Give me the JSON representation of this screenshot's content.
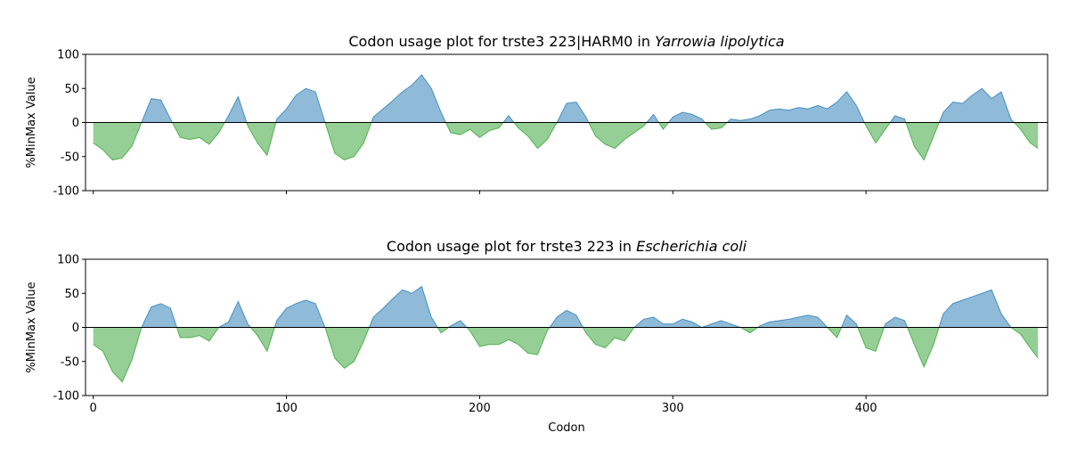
{
  "chart_data": [
    {
      "type": "area",
      "title": "Codon usage plot for trste3 223|HARM0 in",
      "title_italic": "Yarrowia lipolytica",
      "ylabel": "%MinMax Value",
      "x": [
        0,
        5,
        10,
        15,
        20,
        25,
        30,
        35,
        40,
        45,
        50,
        55,
        60,
        65,
        70,
        75,
        80,
        85,
        90,
        95,
        100,
        105,
        110,
        115,
        120,
        125,
        130,
        135,
        140,
        145,
        150,
        155,
        160,
        165,
        170,
        175,
        180,
        185,
        190,
        195,
        200,
        205,
        210,
        215,
        220,
        225,
        230,
        235,
        240,
        245,
        250,
        255,
        260,
        265,
        270,
        275,
        280,
        285,
        290,
        295,
        300,
        305,
        310,
        315,
        320,
        325,
        330,
        335,
        340,
        345,
        350,
        355,
        360,
        365,
        370,
        375,
        380,
        385,
        390,
        395,
        400,
        405,
        410,
        415,
        420,
        425,
        430,
        435,
        440,
        445,
        450,
        455,
        460,
        465,
        470,
        475,
        480,
        485,
        489
      ],
      "values": [
        -30,
        -40,
        -55,
        -52,
        -35,
        0,
        35,
        33,
        5,
        -22,
        -25,
        -22,
        -32,
        -15,
        10,
        38,
        -5,
        -30,
        -48,
        5,
        20,
        40,
        50,
        45,
        0,
        -45,
        -55,
        -50,
        -30,
        8,
        20,
        32,
        45,
        55,
        70,
        50,
        15,
        -15,
        -18,
        -10,
        -22,
        -12,
        -8,
        10,
        -8,
        -20,
        -38,
        -25,
        0,
        28,
        30,
        8,
        -20,
        -32,
        -38,
        -25,
        -15,
        -5,
        12,
        -10,
        8,
        15,
        12,
        5,
        -10,
        -8,
        5,
        3,
        5,
        10,
        18,
        20,
        18,
        22,
        20,
        25,
        20,
        30,
        45,
        25,
        -5,
        -30,
        -10,
        10,
        5,
        -35,
        -55,
        -20,
        15,
        30,
        28,
        40,
        50,
        35,
        45,
        5,
        -10,
        -30,
        -38
      ],
      "colors": {
        "positive": "#1f77b4",
        "negative": "#2ca02c"
      },
      "xlim": [
        -4,
        494
      ],
      "ylim": [
        -100,
        100
      ],
      "xticks": [
        0,
        100,
        200,
        300,
        400
      ],
      "yticks": [
        -100,
        -50,
        0,
        50,
        100
      ]
    },
    {
      "type": "area",
      "title": "Codon usage plot for trste3 223 in",
      "title_italic": "Escherichia coli",
      "xlabel": "Codon",
      "ylabel": "%MinMax Value",
      "x": [
        0,
        5,
        10,
        15,
        20,
        25,
        30,
        35,
        40,
        45,
        50,
        55,
        60,
        65,
        70,
        75,
        80,
        85,
        90,
        95,
        100,
        105,
        110,
        115,
        120,
        125,
        130,
        135,
        140,
        145,
        150,
        155,
        160,
        165,
        170,
        175,
        180,
        185,
        190,
        195,
        200,
        205,
        210,
        215,
        220,
        225,
        230,
        235,
        240,
        245,
        250,
        255,
        260,
        265,
        270,
        275,
        280,
        285,
        290,
        295,
        300,
        305,
        310,
        315,
        320,
        325,
        330,
        335,
        340,
        345,
        350,
        355,
        360,
        365,
        370,
        375,
        380,
        385,
        390,
        395,
        400,
        405,
        410,
        415,
        420,
        425,
        430,
        435,
        440,
        445,
        450,
        455,
        460,
        465,
        470,
        475,
        480,
        485,
        489
      ],
      "values": [
        -25,
        -35,
        -65,
        -80,
        -48,
        0,
        30,
        35,
        28,
        -15,
        -15,
        -12,
        -20,
        0,
        8,
        38,
        5,
        -12,
        -35,
        10,
        28,
        35,
        40,
        35,
        0,
        -45,
        -60,
        -50,
        -20,
        15,
        28,
        42,
        55,
        50,
        60,
        15,
        -8,
        2,
        10,
        -5,
        -28,
        -25,
        -25,
        -18,
        -25,
        -38,
        -40,
        -5,
        15,
        25,
        18,
        -8,
        -25,
        -30,
        -15,
        -20,
        0,
        12,
        15,
        5,
        5,
        12,
        8,
        0,
        5,
        10,
        5,
        0,
        -8,
        2,
        8,
        10,
        12,
        15,
        18,
        15,
        0,
        -15,
        18,
        5,
        -30,
        -35,
        5,
        15,
        10,
        -25,
        -58,
        -25,
        20,
        35,
        40,
        45,
        50,
        55,
        20,
        0,
        -10,
        -30,
        -45
      ],
      "colors": {
        "positive": "#1f77b4",
        "negative": "#2ca02c"
      },
      "xlim": [
        -4,
        494
      ],
      "ylim": [
        -100,
        100
      ],
      "xticks": [
        0,
        100,
        200,
        300,
        400
      ],
      "yticks": [
        -100,
        -50,
        0,
        50,
        100
      ]
    }
  ]
}
